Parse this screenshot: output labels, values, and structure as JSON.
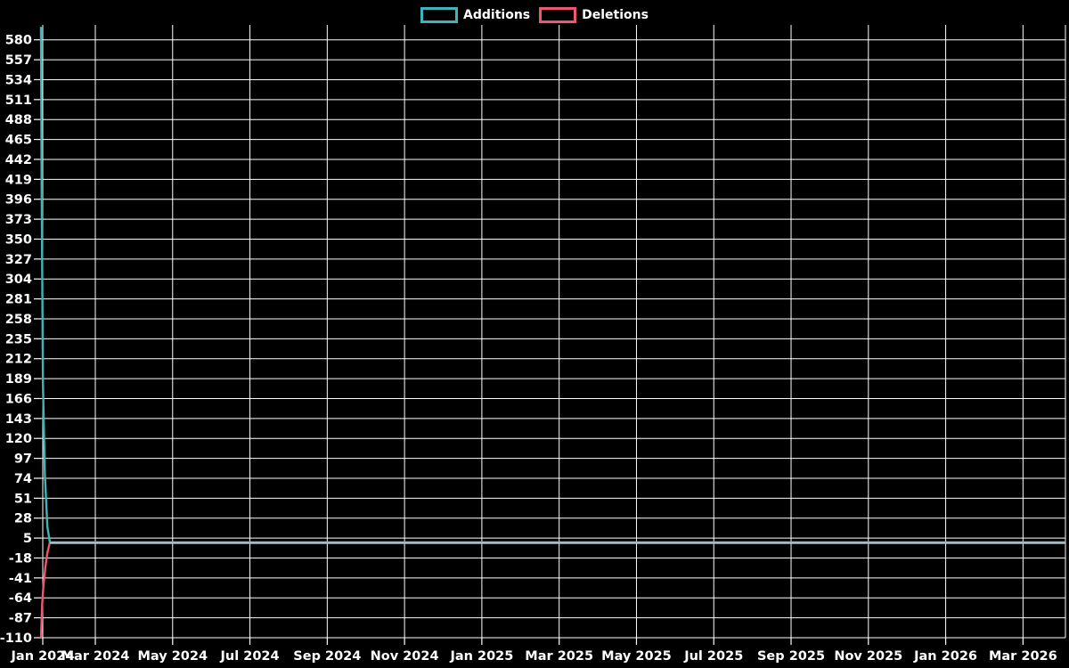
{
  "legend": {
    "items": [
      {
        "label": "Additions",
        "color": "#40b5b8"
      },
      {
        "label": "Deletions",
        "color": "#ee5673"
      }
    ]
  },
  "chart_data": {
    "type": "line",
    "title": "",
    "xlabel": "",
    "ylabel": "",
    "background_color": "#000000",
    "grid_color": "#ffffff",
    "text_color": "#ffffff",
    "grid": true,
    "legend_position": "top-center",
    "x_axis": {
      "tick_labels": [
        "Jan 2024",
        "Mar 2024",
        "May 2024",
        "Jul 2024",
        "Sep 2024",
        "Nov 2024",
        "Jan 2025",
        "Mar 2025",
        "May 2025",
        "Jul 2025",
        "Sep 2025",
        "Nov 2025",
        "Jan 2026",
        "Mar 2026"
      ],
      "start": "Jan 2024",
      "end": "Mar 2026"
    },
    "y_axis": {
      "tick_labels": [
        "580",
        "557",
        "534",
        "511",
        "488",
        "465",
        "442",
        "419",
        "396",
        "373",
        "350",
        "327",
        "304",
        "281",
        "258",
        "235",
        "212",
        "189",
        "166",
        "143",
        "120",
        "97",
        "74",
        "51",
        "28",
        "5",
        "-18",
        "-41",
        "-64",
        "-87",
        "-110"
      ],
      "tick_step": 23,
      "domain_min": -110,
      "domain_max": 597
    },
    "series": [
      {
        "name": "Additions",
        "color": "#40b5b8",
        "points_day_value": [
          [
            0,
            595
          ],
          [
            0.5,
            420
          ],
          [
            1.5,
            184
          ],
          [
            3,
            80
          ],
          [
            5,
            18
          ],
          [
            7,
            0
          ]
        ],
        "flat_value_after_day7": 0
      },
      {
        "name": "Deletions",
        "color": "#ee5673",
        "points_day_value": [
          [
            0,
            -110
          ],
          [
            1,
            -70
          ],
          [
            2,
            -48
          ],
          [
            3.5,
            -28
          ],
          [
            5,
            -12
          ],
          [
            7,
            0
          ]
        ],
        "flat_value_after_day7": 0
      }
    ],
    "overlap_flat_line_color": "#9fc4c8",
    "summary": "Single spike at the start (mid-Jan 2024): additions peak ~595, deletions trough -110, both series flat at 0 from late Jan 2024 through Mar 2026."
  }
}
